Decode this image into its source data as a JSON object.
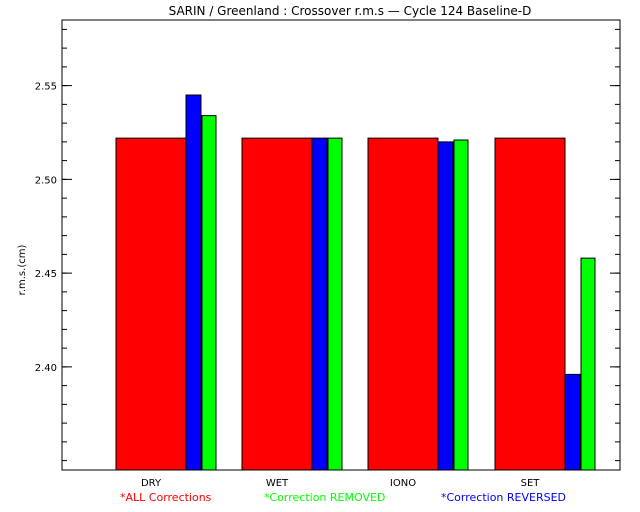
{
  "chart_data": {
    "type": "bar",
    "title": "SARIN / Greenland : Crossover r.m.s — Cycle 124 Baseline-D",
    "xlabel": "",
    "ylabel": "r.m.s.(cm)",
    "ylim": [
      2.345,
      2.585
    ],
    "yticks": [
      2.4,
      2.45,
      2.5,
      2.55
    ],
    "ytick_labels": [
      "2.40",
      "2.45",
      "2.50",
      "2.55"
    ],
    "categories": [
      "DRY",
      "WET",
      "IONO",
      "SET"
    ],
    "series": [
      {
        "name": "ALL Corrections",
        "legend_label": "*ALL Corrections",
        "color": "#ff0000",
        "values": [
          2.522,
          2.522,
          2.522,
          2.522
        ]
      },
      {
        "name": "Correction REVERSED",
        "legend_label": "*Correction REVERSED",
        "color": "#0000ff",
        "values": [
          2.545,
          2.522,
          2.52,
          2.396
        ]
      },
      {
        "name": "Correction REMOVED",
        "legend_label": "*Correction REMOVED",
        "color": "#00ff00",
        "values": [
          2.534,
          2.522,
          2.521,
          2.458
        ]
      }
    ],
    "legend_order": [
      0,
      2,
      1
    ],
    "grid": false,
    "legend_position": "bottom"
  }
}
